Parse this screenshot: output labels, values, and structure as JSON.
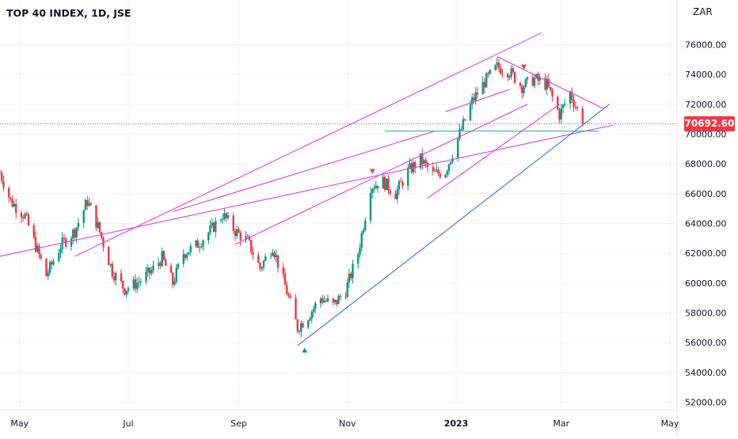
{
  "header": {
    "title": "TOP 40 INDEX, 1D, JSE",
    "currency": "ZAR"
  },
  "colors": {
    "up": "#089981",
    "down": "#f23645",
    "pattern": "#e040e0",
    "trend": "#4a7ae8",
    "support": "#1cad8e",
    "grid": "#f0f3fa",
    "axis_text": "#131722"
  },
  "chart_data": {
    "type": "candlestick",
    "title": "TOP 40 INDEX, 1D, JSE",
    "currency": "ZAR",
    "last_price": 70692.6,
    "last_price_label": "70692.60",
    "ylim": [
      51500,
      79000
    ],
    "y_ticks": [
      52000,
      54000,
      56000,
      58000,
      60000,
      62000,
      64000,
      66000,
      68000,
      70000,
      72000,
      74000,
      76000
    ],
    "y_tick_labels": [
      "52000.00",
      "54000.00",
      "56000.00",
      "58000.00",
      "60000.00",
      "62000.00",
      "64000.00",
      "66000.00",
      "68000.00",
      "70000.00",
      "72000.00",
      "74000.00",
      "76000.00"
    ],
    "x_range": [
      "2022-04-20",
      "2023-05-05"
    ],
    "x_ticks": [
      {
        "date": "2022-05-01",
        "label": "May"
      },
      {
        "date": "2022-07-01",
        "label": "Jul"
      },
      {
        "date": "2022-09-01",
        "label": "Sep"
      },
      {
        "date": "2022-11-01",
        "label": "Nov"
      },
      {
        "date": "2023-01-01",
        "label": "2023"
      },
      {
        "date": "2023-03-01",
        "label": "Mar"
      },
      {
        "date": "2023-05-01",
        "label": "May"
      }
    ],
    "grid": true,
    "path": [
      [
        "2022-04-20",
        67400
      ],
      [
        "2022-04-26",
        65500
      ],
      [
        "2022-05-04",
        64500
      ],
      [
        "2022-05-10",
        62500
      ],
      [
        "2022-05-16",
        60500
      ],
      [
        "2022-05-24",
        62500
      ],
      [
        "2022-06-01",
        63500
      ],
      [
        "2022-06-08",
        65500
      ],
      [
        "2022-06-14",
        63800
      ],
      [
        "2022-06-22",
        60800
      ],
      [
        "2022-06-29",
        59600
      ],
      [
        "2022-07-06",
        60000
      ],
      [
        "2022-07-14",
        60800
      ],
      [
        "2022-07-20",
        61700
      ],
      [
        "2022-07-26",
        60000
      ],
      [
        "2022-08-01",
        62000
      ],
      [
        "2022-08-08",
        62500
      ],
      [
        "2022-08-16",
        63500
      ],
      [
        "2022-08-23",
        64600
      ],
      [
        "2022-08-30",
        63500
      ],
      [
        "2022-09-06",
        62800
      ],
      [
        "2022-09-13",
        61000
      ],
      [
        "2022-09-20",
        62500
      ],
      [
        "2022-09-27",
        59800
      ],
      [
        "2022-10-04",
        57000
      ],
      [
        "2022-10-10",
        57800
      ],
      [
        "2022-10-17",
        59000
      ],
      [
        "2022-10-24",
        58500
      ],
      [
        "2022-10-31",
        59500
      ],
      [
        "2022-11-07",
        62000
      ],
      [
        "2022-11-14",
        66500
      ],
      [
        "2022-11-21",
        66800
      ],
      [
        "2022-11-28",
        66000
      ],
      [
        "2022-12-05",
        67500
      ],
      [
        "2022-12-12",
        68300
      ],
      [
        "2022-12-19",
        67300
      ],
      [
        "2022-12-26",
        67500
      ],
      [
        "2023-01-03",
        70000
      ],
      [
        "2023-01-10",
        72200
      ],
      [
        "2023-01-17",
        73500
      ],
      [
        "2023-01-24",
        74500
      ],
      [
        "2023-01-31",
        74200
      ],
      [
        "2023-02-07",
        73200
      ],
      [
        "2023-02-14",
        73700
      ],
      [
        "2023-02-21",
        73300
      ],
      [
        "2023-02-28",
        71300
      ],
      [
        "2023-03-06",
        72800
      ],
      [
        "2023-03-13",
        70700
      ]
    ],
    "markers": [
      {
        "date": "2022-10-08",
        "price": 55500,
        "kind": "up",
        "color": "#089981"
      },
      {
        "date": "2022-11-15",
        "price": 67500,
        "kind": "down",
        "color": "#f23645"
      },
      {
        "date": "2023-02-08",
        "price": 74500,
        "kind": "down",
        "color": "#f23645"
      }
    ],
    "lines": [
      {
        "name": "rising-resistance",
        "color": "#e040e0",
        "from": [
          "2022-04-20",
          61800
        ],
        "to": [
          "2023-03-30",
          70600
        ]
      },
      {
        "name": "upper-trend",
        "color": "#e040e0",
        "from": [
          "2022-06-01",
          61800
        ],
        "to": [
          "2023-02-18",
          76800
        ]
      },
      {
        "name": "mid-channel",
        "color": "#e040e0",
        "from": [
          "2022-07-26",
          64800
        ],
        "to": [
          "2022-12-20",
          70200
        ]
      },
      {
        "name": "lower-trend",
        "color": "#e040e0",
        "from": [
          "2022-08-30",
          62600
        ],
        "to": [
          "2023-02-10",
          72000
        ]
      },
      {
        "name": "descending-resistance",
        "color": "#e040e0",
        "from": [
          "2023-01-24",
          75200
        ],
        "to": [
          "2023-03-25",
          71700
        ]
      },
      {
        "name": "flag-low",
        "color": "#e040e0",
        "from": [
          "2022-12-16",
          65700
        ],
        "to": [
          "2023-02-28",
          72000
        ]
      },
      {
        "name": "flag-high",
        "color": "#e040e0",
        "from": [
          "2022-12-26",
          71500
        ],
        "to": [
          "2023-01-31",
          73000
        ]
      },
      {
        "name": "support-trend",
        "color": "#4a7ae8",
        "from": [
          "2022-10-04",
          55800
        ],
        "to": [
          "2023-03-28",
          72000
        ]
      },
      {
        "name": "horizontal-support",
        "color": "#1cad8e",
        "from": [
          "2022-11-22",
          70200
        ],
        "to": [
          "2023-03-22",
          70200
        ]
      }
    ]
  }
}
